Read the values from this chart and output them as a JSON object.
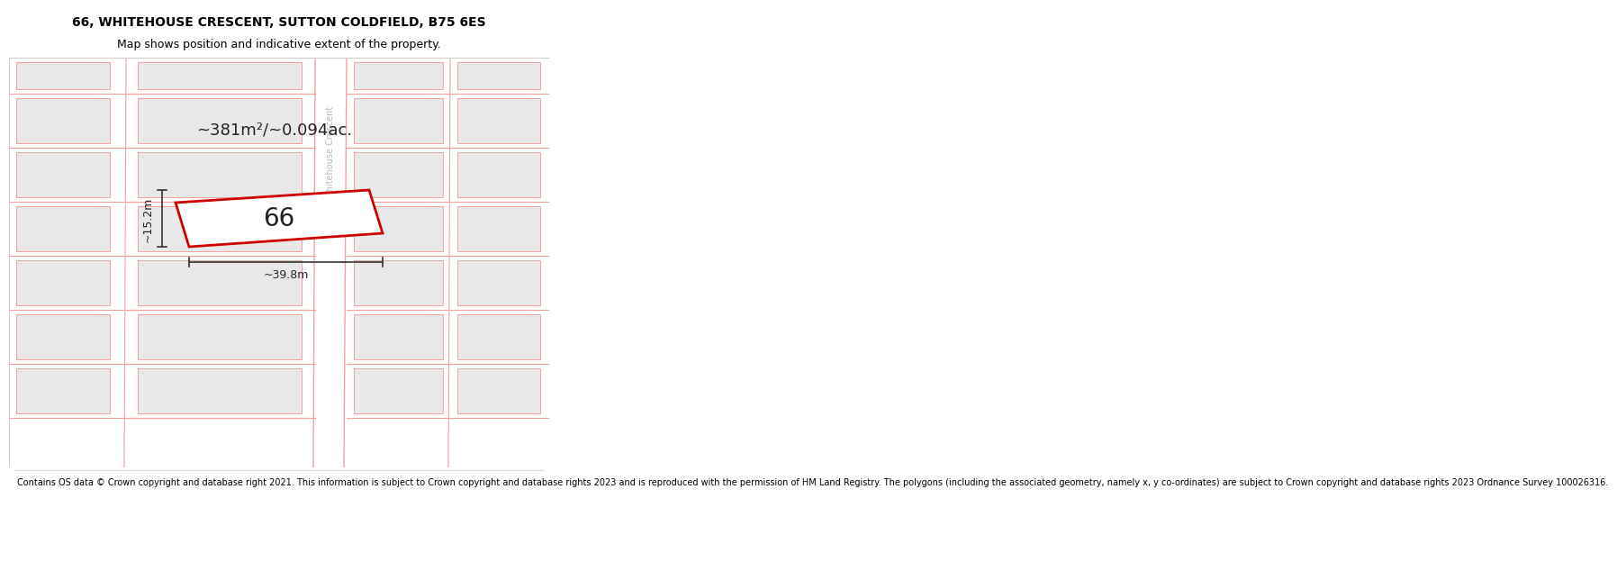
{
  "title_line1": "66, WHITEHOUSE CRESCENT, SUTTON COLDFIELD, B75 6ES",
  "title_line2": "Map shows position and indicative extent of the property.",
  "footer_text": "Contains OS data © Crown copyright and database right 2021. This information is subject to Crown copyright and database rights 2023 and is reproduced with the permission of HM Land Registry. The polygons (including the associated geometry, namely x, y co-ordinates) are subject to Crown copyright and database rights 2023 Ordnance Survey 100026316.",
  "area_text": "~381m²/~0.094ac.",
  "width_label": "~39.8m",
  "height_label": "~15.2m",
  "plot_number": "66",
  "road_label": "Whitehouse Crescent",
  "bg_color": "#ffffff",
  "map_bg_color": "#ffffff",
  "plot_color_edge": "#cc0000",
  "building_fill": "#e8e8e8",
  "building_edge": "#f5a0a0",
  "road_line_color": "#f5a0a0",
  "title_fontsize": 10,
  "subtitle_fontsize": 9,
  "footer_fontsize": 7,
  "road_label_color": "#bbbbbb"
}
